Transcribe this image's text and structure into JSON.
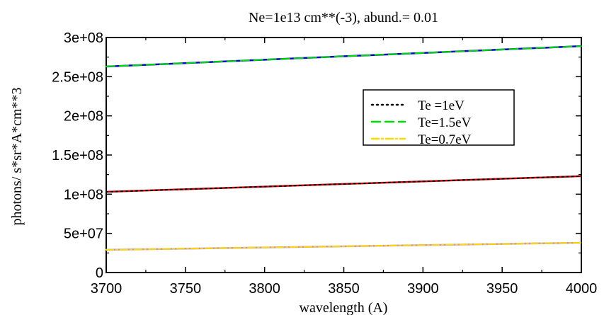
{
  "chart_data": {
    "type": "line",
    "title": "Ne=1e13 cm**(-3), abund.= 0.01",
    "xlabel": "wavelength (A)",
    "ylabel": "photons/ s*sr*A*cm**3",
    "xlim": [
      3700,
      4000
    ],
    "ylim": [
      0,
      300000000
    ],
    "xticks": [
      3700,
      3750,
      3800,
      3850,
      3900,
      3950,
      4000
    ],
    "xtick_labels": [
      "3700",
      "3750",
      "3800",
      "3850",
      "3900",
      "3950",
      "4000"
    ],
    "yticks": [
      0,
      50000000,
      100000000,
      150000000,
      200000000,
      250000000,
      300000000
    ],
    "ytick_labels": [
      "0",
      "5e+07",
      "1e+08",
      "1.5e+08",
      "2e+08",
      "2.5e+08",
      "3e+08"
    ],
    "grid": false,
    "legend_position": "top-right",
    "series": [
      {
        "name": "Te =1eV",
        "color": "#000000",
        "style": "dotted",
        "under_color": "#cc0000",
        "x": [
          3700,
          4000
        ],
        "y": [
          103000000,
          123000000
        ]
      },
      {
        "name": "Te=1.5eV",
        "color": "#00dd00",
        "style": "dashed",
        "under_color": "#0000cc",
        "x": [
          3700,
          4000
        ],
        "y": [
          263000000,
          289000000
        ]
      },
      {
        "name": "Te=0.7eV",
        "color": "#ffd800",
        "style": "dashdot",
        "under_color": "#bb99cc",
        "x": [
          3700,
          4000
        ],
        "y": [
          29000000,
          38000000
        ]
      }
    ]
  }
}
